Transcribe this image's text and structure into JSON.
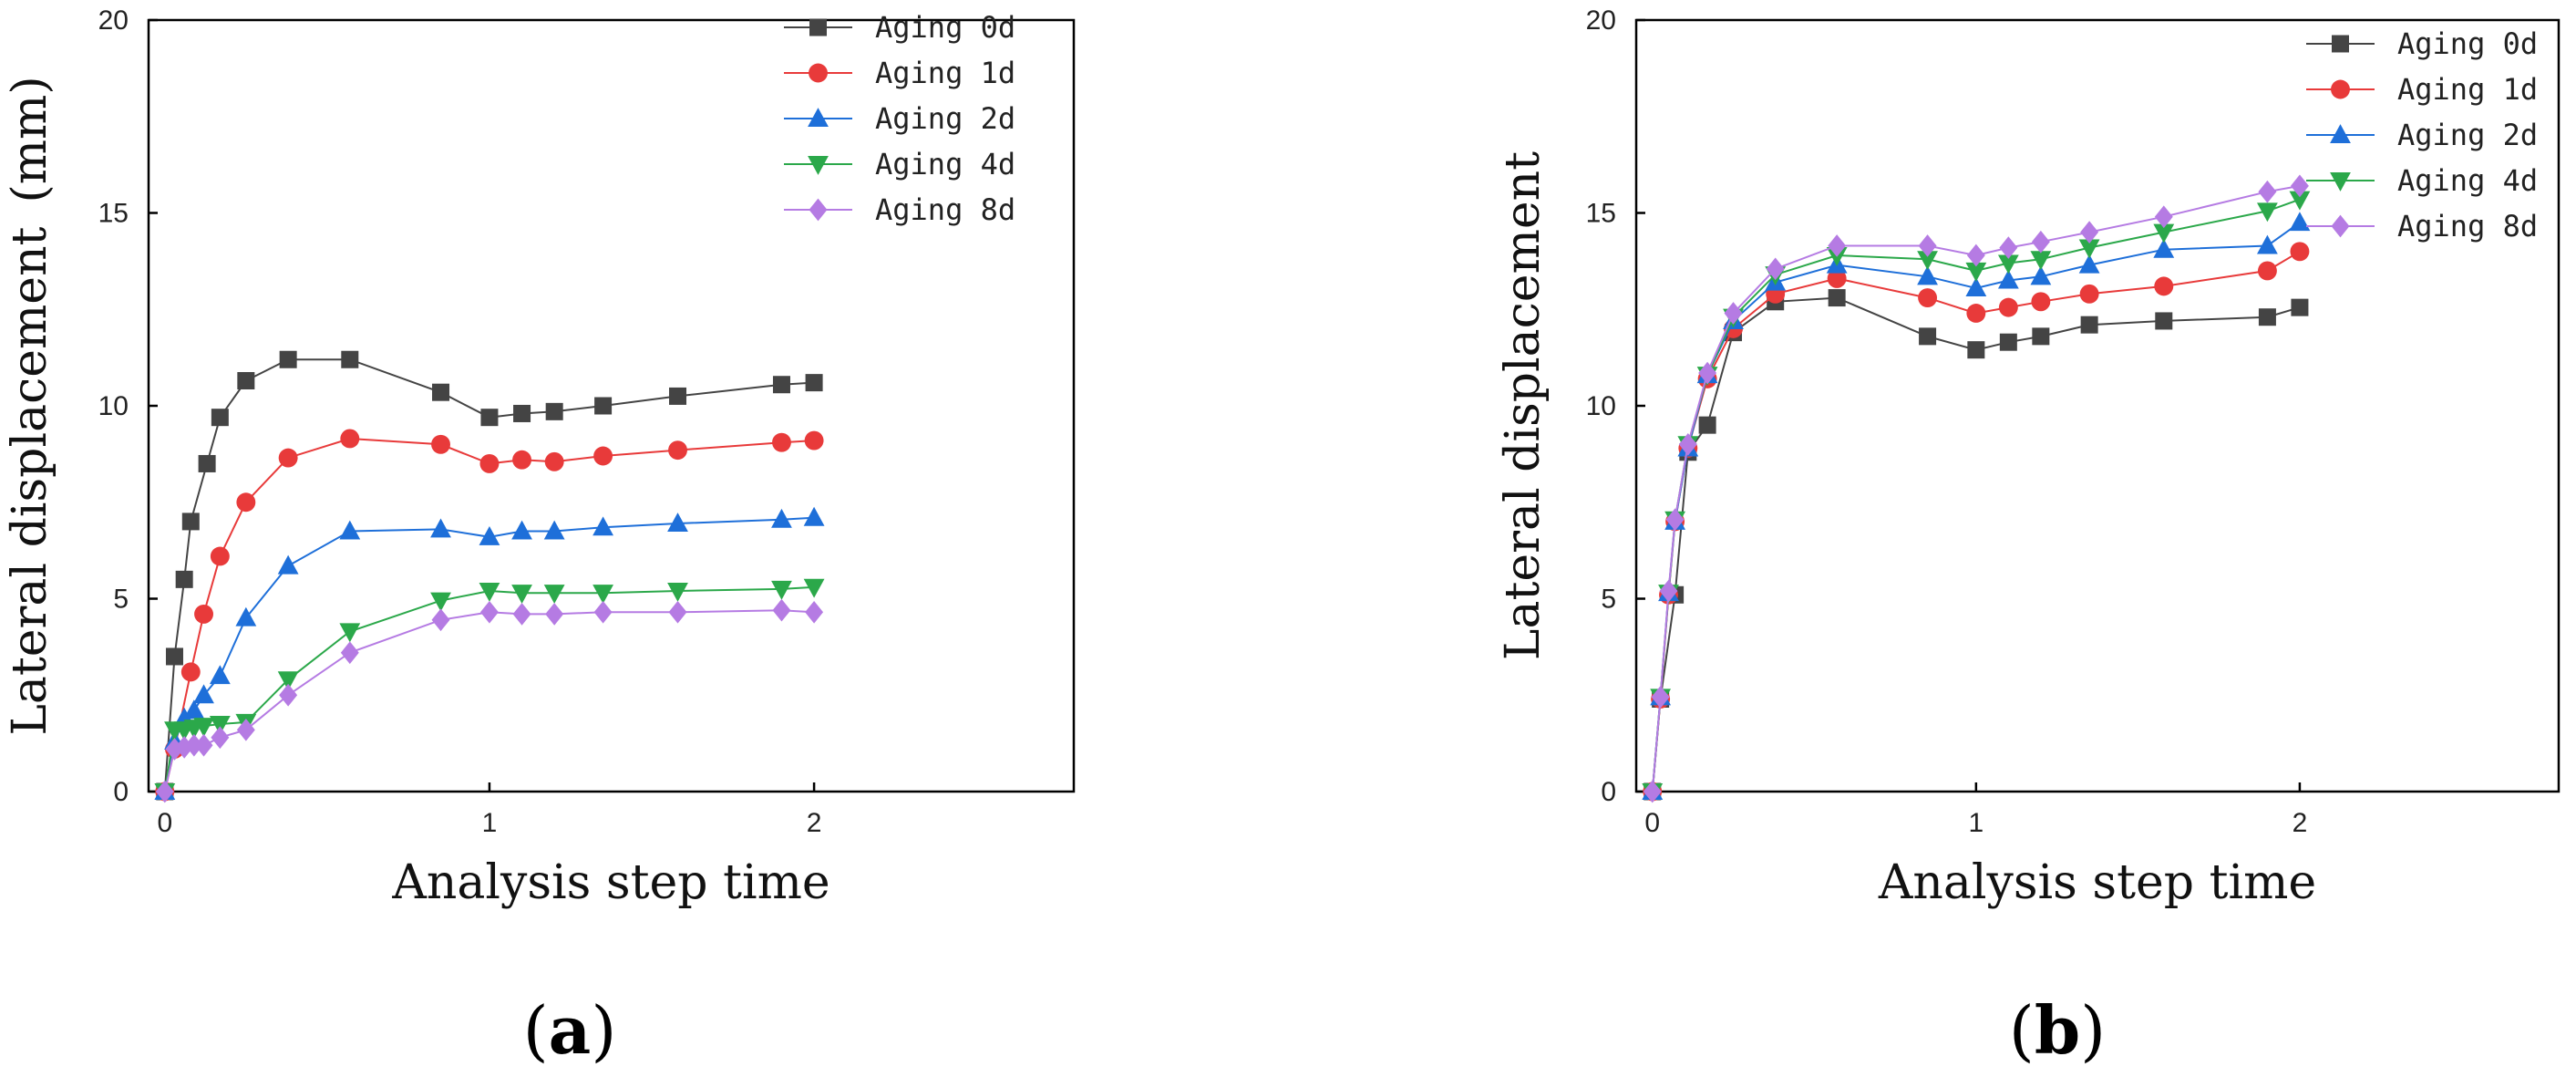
{
  "chart_data": [
    {
      "type": "line",
      "panel": "a",
      "panel_label_open": "(",
      "panel_label_letter": "a",
      "panel_label_close": ")",
      "title": "",
      "xlabel": "Analysis step time",
      "ylabel": "Lateral displacement (mm)",
      "xlim": [
        -0.05,
        2.8
      ],
      "ylim": [
        0,
        20
      ],
      "xticks": [
        0,
        1,
        2
      ],
      "yticks": [
        0,
        5,
        10,
        15,
        20
      ],
      "legend_position": "top-right",
      "series": [
        {
          "name": "Aging 0d",
          "color": "#444444",
          "marker": "square",
          "x": [
            0,
            0.03,
            0.06,
            0.08,
            0.13,
            0.17,
            0.25,
            0.38,
            0.57,
            0.85,
            1.0,
            1.1,
            1.2,
            1.35,
            1.58,
            1.9,
            2.0
          ],
          "y": [
            0,
            3.5,
            5.5,
            7.0,
            8.5,
            9.7,
            10.65,
            11.2,
            11.2,
            10.35,
            9.7,
            9.8,
            9.85,
            10.0,
            10.25,
            10.55,
            10.6
          ]
        },
        {
          "name": "Aging 1d",
          "color": "#E83A3A",
          "marker": "circle",
          "x": [
            0,
            0.03,
            0.08,
            0.12,
            0.17,
            0.25,
            0.38,
            0.57,
            0.85,
            1.0,
            1.1,
            1.2,
            1.35,
            1.58,
            1.9,
            2.0
          ],
          "y": [
            0,
            1.1,
            3.1,
            4.6,
            6.1,
            7.5,
            8.65,
            9.15,
            9.0,
            8.5,
            8.6,
            8.55,
            8.7,
            8.85,
            9.05,
            9.1
          ]
        },
        {
          "name": "Aging 2d",
          "color": "#1E6FD9",
          "marker": "triangle-up",
          "x": [
            0,
            0.03,
            0.06,
            0.09,
            0.12,
            0.17,
            0.25,
            0.38,
            0.57,
            0.85,
            1.0,
            1.1,
            1.2,
            1.35,
            1.58,
            1.9,
            2.0
          ],
          "y": [
            0,
            1.3,
            1.9,
            2.1,
            2.5,
            3.0,
            4.5,
            5.85,
            6.75,
            6.8,
            6.6,
            6.75,
            6.75,
            6.85,
            6.95,
            7.05,
            7.1
          ]
        },
        {
          "name": "Aging 4d",
          "color": "#2BA84A",
          "marker": "triangle-down",
          "x": [
            0,
            0.03,
            0.06,
            0.09,
            0.12,
            0.17,
            0.25,
            0.38,
            0.57,
            0.85,
            1.0,
            1.1,
            1.2,
            1.35,
            1.58,
            1.9,
            2.0
          ],
          "y": [
            0,
            1.6,
            1.6,
            1.65,
            1.7,
            1.75,
            1.8,
            2.9,
            4.15,
            4.95,
            5.2,
            5.15,
            5.15,
            5.15,
            5.2,
            5.25,
            5.3
          ]
        },
        {
          "name": "Aging 8d",
          "color": "#B57BE3",
          "marker": "diamond",
          "x": [
            0,
            0.03,
            0.06,
            0.09,
            0.12,
            0.17,
            0.25,
            0.38,
            0.57,
            0.85,
            1.0,
            1.1,
            1.2,
            1.35,
            1.58,
            1.9,
            2.0
          ],
          "y": [
            0,
            1.1,
            1.15,
            1.2,
            1.2,
            1.4,
            1.6,
            2.5,
            3.6,
            4.45,
            4.65,
            4.6,
            4.6,
            4.65,
            4.65,
            4.7,
            4.65
          ]
        }
      ]
    },
    {
      "type": "line",
      "panel": "b",
      "panel_label_open": "(",
      "panel_label_letter": "b",
      "panel_label_close": ")",
      "title": "",
      "xlabel": "Analysis step time",
      "ylabel": "Lateral displacement",
      "xlim": [
        -0.05,
        2.8
      ],
      "ylim": [
        0,
        20
      ],
      "xticks": [
        0,
        1,
        2
      ],
      "yticks": [
        0,
        5,
        10,
        15,
        20
      ],
      "legend_position": "top-right",
      "series": [
        {
          "name": "Aging 0d",
          "color": "#444444",
          "marker": "square",
          "x": [
            0,
            0.025,
            0.07,
            0.11,
            0.17,
            0.25,
            0.38,
            0.57,
            0.85,
            1.0,
            1.1,
            1.2,
            1.35,
            1.58,
            1.9,
            2.0
          ],
          "y": [
            0,
            2.4,
            5.1,
            8.8,
            9.5,
            11.9,
            12.7,
            12.8,
            11.8,
            11.45,
            11.65,
            11.8,
            12.1,
            12.2,
            12.3,
            12.55
          ]
        },
        {
          "name": "Aging 1d",
          "color": "#E83A3A",
          "marker": "circle",
          "x": [
            0,
            0.025,
            0.05,
            0.07,
            0.11,
            0.17,
            0.25,
            0.38,
            0.57,
            0.85,
            1.0,
            1.1,
            1.2,
            1.35,
            1.58,
            1.9,
            2.0
          ],
          "y": [
            0,
            2.4,
            5.1,
            7.0,
            8.9,
            10.7,
            12.0,
            12.9,
            13.3,
            12.8,
            12.4,
            12.55,
            12.7,
            12.9,
            13.1,
            13.5,
            14.0
          ]
        },
        {
          "name": "Aging 2d",
          "color": "#1E6FD9",
          "marker": "triangle-up",
          "x": [
            0,
            0.025,
            0.05,
            0.07,
            0.11,
            0.17,
            0.25,
            0.38,
            0.57,
            0.85,
            1.0,
            1.1,
            1.2,
            1.35,
            1.58,
            1.9,
            2.0
          ],
          "y": [
            0,
            2.45,
            5.15,
            7.0,
            8.9,
            10.8,
            12.2,
            13.2,
            13.65,
            13.35,
            13.05,
            13.25,
            13.35,
            13.65,
            14.05,
            14.15,
            14.75
          ]
        },
        {
          "name": "Aging 4d",
          "color": "#2BA84A",
          "marker": "triangle-down",
          "x": [
            0,
            0.025,
            0.05,
            0.07,
            0.11,
            0.17,
            0.25,
            0.38,
            0.57,
            0.85,
            1.0,
            1.1,
            1.2,
            1.35,
            1.58,
            1.9,
            2.0
          ],
          "y": [
            0,
            2.45,
            5.15,
            7.05,
            9.0,
            10.8,
            12.3,
            13.4,
            13.9,
            13.8,
            13.5,
            13.7,
            13.8,
            14.1,
            14.5,
            15.05,
            15.35
          ]
        },
        {
          "name": "Aging 8d",
          "color": "#B57BE3",
          "marker": "diamond",
          "x": [
            0,
            0.025,
            0.05,
            0.07,
            0.11,
            0.17,
            0.25,
            0.38,
            0.57,
            0.85,
            1.0,
            1.1,
            1.2,
            1.35,
            1.58,
            1.9,
            2.0
          ],
          "y": [
            0,
            2.45,
            5.2,
            7.05,
            9.0,
            10.85,
            12.4,
            13.55,
            14.15,
            14.15,
            13.9,
            14.1,
            14.25,
            14.5,
            14.9,
            15.55,
            15.7
          ]
        }
      ]
    }
  ]
}
